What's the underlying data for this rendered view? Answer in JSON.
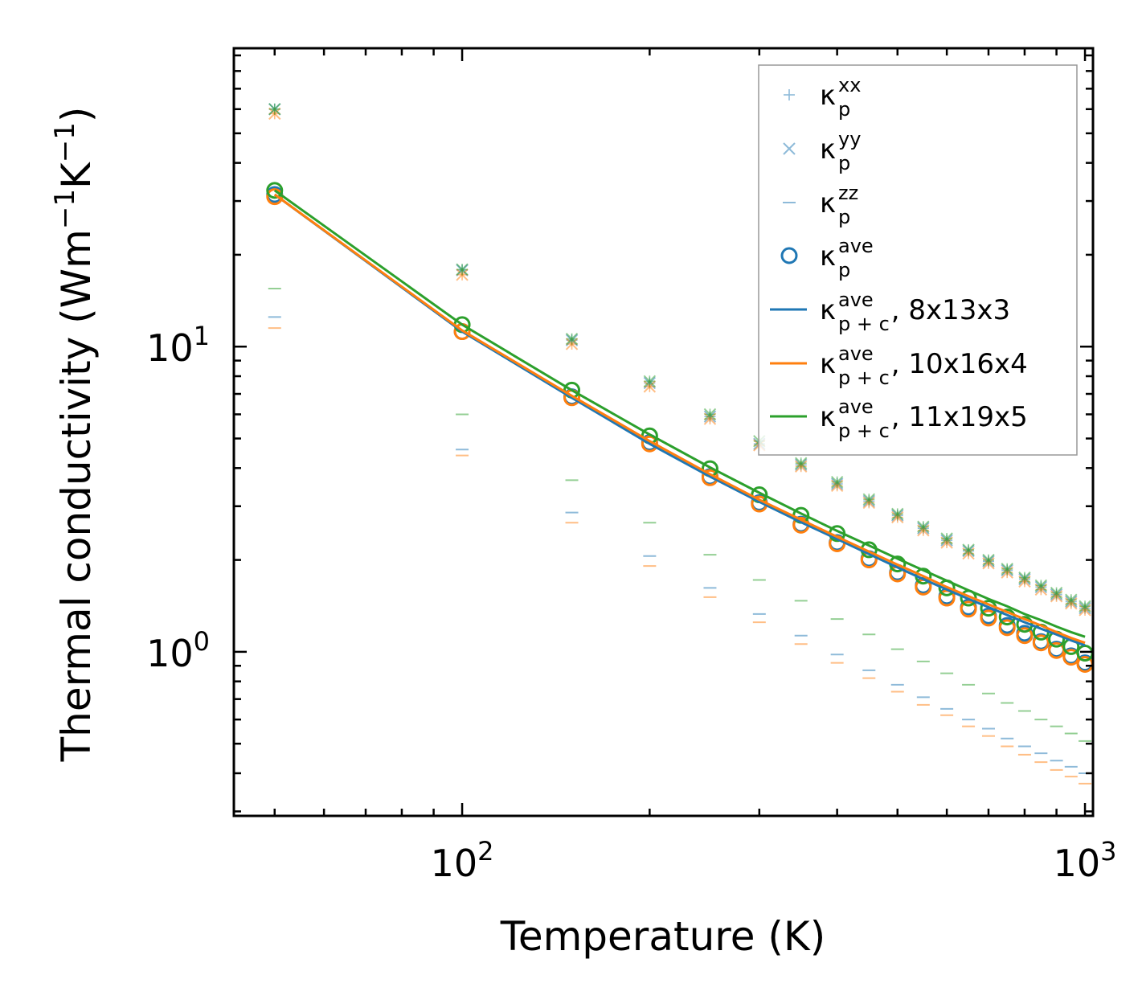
{
  "chart_data": {
    "type": "scatter",
    "xscale": "log",
    "yscale": "log",
    "xlabel": "Temperature (K)",
    "ylabel_base": "Thermal conductivity (Wm",
    "ylabel_exp1": "−1",
    "ylabel_mid": "K",
    "ylabel_exp2": "−1",
    "ylabel_end": ")",
    "xlim": [
      43,
      1030
    ],
    "ylim": [
      0.29,
      95
    ],
    "x_ticks": [
      {
        "value": 100,
        "base": "10",
        "exp": "2"
      },
      {
        "value": 1000,
        "base": "10",
        "exp": "3"
      }
    ],
    "y_ticks": [
      {
        "value": 1,
        "base": "10",
        "exp": "0"
      },
      {
        "value": 10,
        "base": "10",
        "exp": "1"
      }
    ],
    "x": [
      50,
      100,
      150,
      200,
      250,
      300,
      350,
      400,
      450,
      500,
      550,
      600,
      650,
      700,
      750,
      800,
      850,
      900,
      950,
      1000
    ],
    "series": [
      {
        "name": "8x13x3",
        "color": "#1f77b4",
        "kxx": [
          60,
          17.8,
          10.5,
          7.6,
          5.9,
          4.8,
          4.1,
          3.55,
          3.12,
          2.8,
          2.54,
          2.32,
          2.14,
          1.98,
          1.85,
          1.73,
          1.63,
          1.54,
          1.46,
          1.39
        ],
        "kyy": [
          60,
          17.8,
          10.5,
          7.6,
          5.9,
          4.8,
          4.1,
          3.55,
          3.12,
          2.8,
          2.54,
          2.32,
          2.14,
          1.98,
          1.85,
          1.73,
          1.63,
          1.54,
          1.46,
          1.39
        ],
        "kzz": [
          12.5,
          4.6,
          2.86,
          2.06,
          1.62,
          1.33,
          1.13,
          0.98,
          0.87,
          0.78,
          0.71,
          0.65,
          0.6,
          0.56,
          0.52,
          0.49,
          0.465,
          0.44,
          0.42,
          0.4
        ],
        "kave": [
          31.5,
          11.2,
          6.85,
          4.85,
          3.75,
          3.08,
          2.62,
          2.28,
          2.02,
          1.82,
          1.65,
          1.52,
          1.4,
          1.31,
          1.22,
          1.15,
          1.08,
          1.02,
          0.97,
          0.92
        ],
        "kpc": [
          31.5,
          11.2,
          6.8,
          4.8,
          3.75,
          3.1,
          2.66,
          2.34,
          2.09,
          1.89,
          1.73,
          1.6,
          1.49,
          1.4,
          1.32,
          1.25,
          1.19,
          1.14,
          1.09,
          1.05
        ]
      },
      {
        "name": "10x16x4",
        "color": "#ff7f0e",
        "kxx": [
          58,
          17.2,
          10.2,
          7.4,
          5.8,
          4.75,
          4.05,
          3.5,
          3.08,
          2.76,
          2.5,
          2.28,
          2.1,
          1.95,
          1.82,
          1.7,
          1.6,
          1.52,
          1.44,
          1.37
        ],
        "kyy": [
          58,
          17.2,
          10.2,
          7.4,
          5.8,
          4.75,
          4.05,
          3.5,
          3.08,
          2.76,
          2.5,
          2.28,
          2.1,
          1.95,
          1.82,
          1.7,
          1.6,
          1.52,
          1.44,
          1.37
        ],
        "kzz": [
          11.5,
          4.4,
          2.65,
          1.91,
          1.51,
          1.25,
          1.06,
          0.92,
          0.82,
          0.74,
          0.67,
          0.62,
          0.57,
          0.53,
          0.49,
          0.46,
          0.435,
          0.41,
          0.39,
          0.37
        ],
        "kave": [
          31,
          11.2,
          6.8,
          4.8,
          3.72,
          3.05,
          2.6,
          2.26,
          2.0,
          1.8,
          1.63,
          1.5,
          1.38,
          1.29,
          1.2,
          1.13,
          1.07,
          1.01,
          0.96,
          0.91
        ],
        "kpc": [
          31.5,
          11.3,
          6.9,
          4.9,
          3.82,
          3.15,
          2.71,
          2.38,
          2.13,
          1.93,
          1.77,
          1.63,
          1.52,
          1.43,
          1.35,
          1.28,
          1.22,
          1.16,
          1.11,
          1.07
        ]
      },
      {
        "name": "11x19x5",
        "color": "#2ca02c",
        "kxx": [
          60,
          17.9,
          10.6,
          7.7,
          6.0,
          4.9,
          4.15,
          3.6,
          3.16,
          2.83,
          2.57,
          2.35,
          2.16,
          2.0,
          1.87,
          1.75,
          1.65,
          1.56,
          1.48,
          1.41
        ],
        "kyy": [
          60,
          17.9,
          10.6,
          7.7,
          6.0,
          4.9,
          4.15,
          3.6,
          3.16,
          2.83,
          2.57,
          2.35,
          2.16,
          2.0,
          1.87,
          1.75,
          1.65,
          1.56,
          1.48,
          1.41
        ],
        "kzz": [
          15.5,
          6.0,
          3.65,
          2.65,
          2.08,
          1.72,
          1.47,
          1.28,
          1.14,
          1.02,
          0.93,
          0.85,
          0.78,
          0.73,
          0.68,
          0.64,
          0.6,
          0.57,
          0.54,
          0.51
        ],
        "kave": [
          32.5,
          11.8,
          7.2,
          5.1,
          3.98,
          3.27,
          2.8,
          2.44,
          2.16,
          1.94,
          1.77,
          1.62,
          1.5,
          1.39,
          1.3,
          1.23,
          1.16,
          1.1,
          1.04,
          0.99
        ],
        "kpc": [
          32.5,
          11.8,
          7.2,
          5.15,
          4.02,
          3.32,
          2.84,
          2.49,
          2.23,
          2.02,
          1.85,
          1.71,
          1.59,
          1.49,
          1.41,
          1.33,
          1.27,
          1.21,
          1.16,
          1.12
        ]
      }
    ],
    "legend": {
      "placement": "upper-right",
      "entries": [
        {
          "kind": "plus",
          "color": "#1f77b4",
          "sym": "κ",
          "sub": "p",
          "sup": "xx",
          "suffix": ""
        },
        {
          "kind": "x",
          "color": "#1f77b4",
          "sym": "κ",
          "sub": "p",
          "sup": "yy",
          "suffix": ""
        },
        {
          "kind": "dash",
          "color": "#1f77b4",
          "sym": "κ",
          "sub": "p",
          "sup": "zz",
          "suffix": ""
        },
        {
          "kind": "circle",
          "color": "#1f77b4",
          "sym": "κ",
          "sub": "p",
          "sup": "ave",
          "suffix": ""
        },
        {
          "kind": "line",
          "color": "#1f77b4",
          "sym": "κ",
          "sub": "p + c",
          "sup": "ave",
          "suffix": ", 8x13x3"
        },
        {
          "kind": "line",
          "color": "#ff7f0e",
          "sym": "κ",
          "sub": "p + c",
          "sup": "ave",
          "suffix": ", 10x16x4"
        },
        {
          "kind": "line",
          "color": "#2ca02c",
          "sym": "κ",
          "sub": "p + c",
          "sup": "ave",
          "suffix": ", 11x19x5"
        }
      ]
    }
  }
}
